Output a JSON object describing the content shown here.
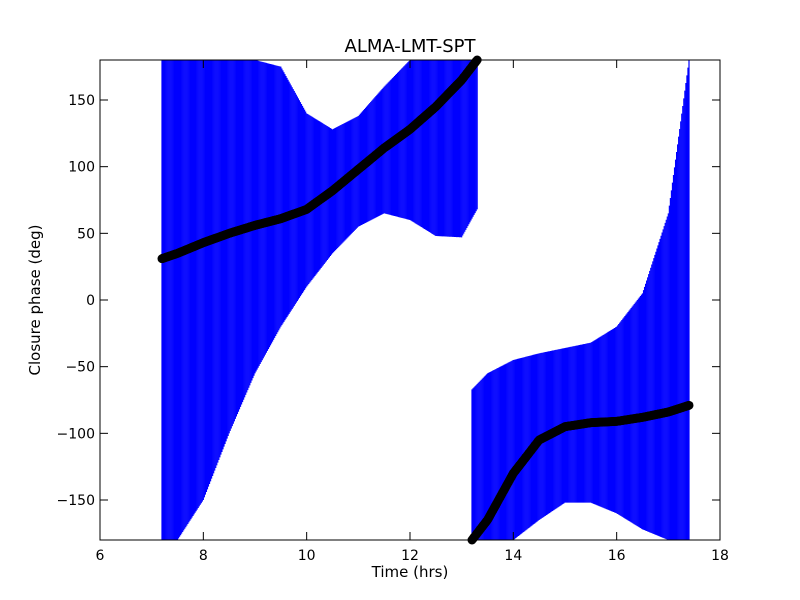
{
  "chart_data": {
    "type": "scatter",
    "title": "ALMA-LMT-SPT",
    "xlabel": "Time (hrs)",
    "ylabel": "Closure phase (deg)",
    "xlim": [
      6,
      18
    ],
    "ylim": [
      -180,
      180
    ],
    "xticks": [
      "6",
      "8",
      "10",
      "12",
      "14",
      "16",
      "18"
    ],
    "yticks": [
      "−150",
      "−100",
      "−50",
      "0",
      "50",
      "100",
      "150"
    ],
    "xtick_values": [
      6,
      8,
      10,
      12,
      14,
      16,
      18
    ],
    "ytick_values": [
      -150,
      -100,
      -50,
      0,
      50,
      100,
      150
    ],
    "grid": false,
    "series_color": "#000000",
    "errorbar_color": "#0000ff",
    "series": [
      {
        "segment": 1,
        "x": [
          7.2,
          7.5,
          8.0,
          8.5,
          9.0,
          9.5,
          10.0,
          10.5,
          11.0,
          11.5,
          12.0,
          12.5,
          13.0,
          13.3
        ],
        "y": [
          31,
          35,
          43,
          50,
          56,
          61,
          68,
          82,
          98,
          114,
          128,
          145,
          165,
          180
        ],
        "ylow": [
          -180,
          -180,
          -150,
          -100,
          -55,
          -20,
          10,
          35,
          55,
          65,
          60,
          48,
          47,
          68
        ],
        "yhigh": [
          180,
          180,
          180,
          180,
          180,
          175,
          140,
          128,
          138,
          160,
          180,
          180,
          180,
          180
        ]
      },
      {
        "segment": 2,
        "x": [
          13.2,
          13.5,
          14.0,
          14.5,
          15.0,
          15.5,
          16.0,
          16.5,
          17.0,
          17.4
        ],
        "y": [
          -180,
          -165,
          -130,
          -105,
          -95,
          -92,
          -91,
          -88,
          -84,
          -79
        ],
        "ylow": [
          -180,
          -180,
          -180,
          -165,
          -152,
          -152,
          -160,
          -172,
          -180,
          -180
        ],
        "yhigh": [
          -67,
          -55,
          -45,
          -40,
          -36,
          -32,
          -20,
          5,
          65,
          180
        ]
      }
    ]
  }
}
